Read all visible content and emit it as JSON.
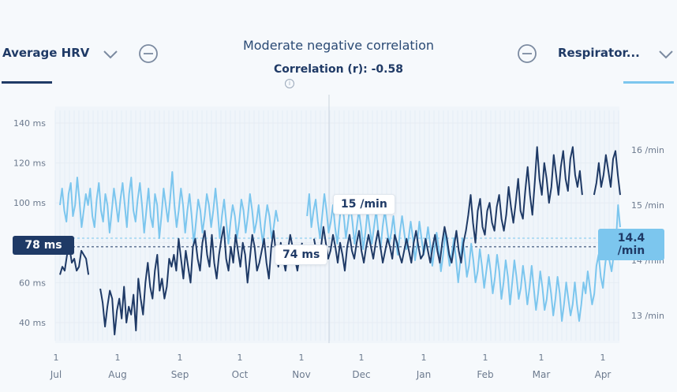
{
  "left_selector": {
    "label": "Average HRV"
  },
  "right_selector": {
    "label": "Respirator..."
  },
  "header": {
    "title": "Moderate negative correlation",
    "correlation_text": "Correlation (r): -0.58"
  },
  "colors": {
    "hrv": "#1f3a66",
    "respiratory": "#7cc6ee",
    "grid": "#e9eef4"
  },
  "icons": {
    "left_chevron": "chevron-down-icon",
    "right_chevron": "chevron-down-icon",
    "left_remove": "minus-circle-icon",
    "right_remove": "minus-circle-icon",
    "info": "info-icon"
  },
  "badges": {
    "hrv_avg": "78 ms",
    "rr_avg": "14.4 /min"
  },
  "tooltip": {
    "rr_value": "15 /min",
    "hrv_value": "74 ms"
  },
  "chart_data": {
    "type": "line",
    "title": "Moderate negative correlation",
    "x_ticks": [
      {
        "day": "1",
        "month": "Jul"
      },
      {
        "day": "1",
        "month": "Aug"
      },
      {
        "day": "1",
        "month": "Sep"
      },
      {
        "day": "1",
        "month": "Oct"
      },
      {
        "day": "1",
        "month": "Nov"
      },
      {
        "day": "1",
        "month": "Dec"
      },
      {
        "day": "1",
        "month": "Jan"
      },
      {
        "day": "1",
        "month": "Feb"
      },
      {
        "day": "1",
        "month": "Mar"
      },
      {
        "day": "1",
        "month": "Apr"
      }
    ],
    "y_left": {
      "ticks": [
        "140 ms",
        "120 ms",
        "100 ms",
        "80 ms",
        "60 ms",
        "40 ms"
      ],
      "values": [
        140,
        120,
        100,
        80,
        60,
        40
      ],
      "range": [
        30,
        150
      ]
    },
    "y_right": {
      "ticks": [
        "16 /min",
        "15 /min",
        "14 /min",
        "13 /min"
      ],
      "values": [
        16,
        15,
        14,
        13
      ],
      "range": [
        12.5,
        16.5
      ]
    },
    "hrv_average": 78,
    "respiratory_average": 14.4,
    "series": [
      {
        "name": "Average HRV",
        "axis": "left",
        "color": "#1f3a66",
        "segments": [
          [
            64,
            68,
            66,
            74,
            78,
            70,
            72,
            66,
            68,
            76,
            74,
            72,
            64
          ],
          [
            57,
            50,
            38,
            48,
            56,
            52,
            34,
            46,
            52,
            42,
            58,
            40,
            48,
            44,
            54,
            36,
            62,
            52,
            44,
            60,
            70,
            58,
            52,
            66,
            74,
            56,
            62,
            52,
            58,
            72,
            68,
            74,
            66,
            82,
            72,
            62,
            76,
            68,
            60,
            78,
            82,
            72,
            66,
            80,
            86,
            74,
            68,
            84,
            70,
            62,
            74,
            82,
            88,
            72,
            66,
            78,
            70,
            84,
            76,
            68,
            80,
            74,
            60,
            72,
            84,
            78,
            66,
            70,
            76,
            82,
            70,
            62,
            78,
            86,
            74,
            68,
            80,
            72,
            66,
            76,
            84,
            78,
            72,
            66,
            74,
            80
          ],
          [
            82,
            76,
            70,
            78,
            88,
            80,
            72,
            76,
            84,
            78,
            70,
            80,
            74,
            66,
            78,
            84,
            76,
            72,
            80,
            86,
            76,
            70,
            78,
            84,
            78,
            72,
            80,
            86,
            78,
            70,
            76,
            82,
            78,
            72,
            84,
            80,
            74,
            70,
            76,
            82,
            76,
            70,
            80,
            86,
            78,
            72,
            74,
            82,
            76,
            70,
            78,
            84,
            76,
            70,
            80,
            88,
            82,
            74,
            70,
            78,
            86,
            76,
            70,
            80,
            86,
            94,
            104,
            90,
            80,
            96,
            102,
            88,
            84,
            96,
            100,
            90,
            86,
            98,
            104,
            92,
            86,
            94,
            108,
            98,
            90,
            100,
            112,
            96,
            92,
            106,
            118,
            104,
            94,
            110,
            128,
            112,
            104,
            120,
            112,
            100,
            108,
            124,
            114,
            104,
            118,
            126,
            112,
            106,
            122,
            128,
            114,
            108,
            116,
            104
          ],
          [
            104,
            110,
            120,
            108,
            114,
            124,
            116,
            108,
            122,
            126,
            114,
            104
          ]
        ]
      },
      {
        "name": "Respiratory rate",
        "axis": "right",
        "color": "#7cc6ee",
        "segments": [
          [
            15.0,
            15.3,
            14.9,
            14.7,
            15.2,
            15.4,
            14.8,
            15.0,
            15.5,
            15.1,
            14.6,
            14.9,
            15.2,
            15.0,
            15.3,
            14.8,
            14.6,
            15.1,
            15.4,
            14.9,
            14.7,
            15.2,
            15.0,
            14.5,
            14.9,
            15.3,
            15.0,
            14.7,
            15.1,
            15.4,
            15.0,
            14.6,
            15.2,
            15.5,
            14.9,
            14.7,
            15.1,
            15.4,
            15.0,
            14.5,
            14.9,
            15.3,
            14.8,
            14.6,
            15.2,
            15.0,
            14.4,
            14.8,
            15.3,
            15.0,
            14.7,
            15.1,
            15.6,
            15.0,
            14.6,
            14.9,
            15.3,
            15.0,
            14.5,
            14.9,
            15.2,
            14.8,
            14.3,
            14.7,
            15.1,
            14.9,
            14.5,
            14.8,
            15.2,
            15.0,
            14.6,
            14.9,
            15.3,
            14.9,
            14.4,
            14.8,
            15.1,
            14.7,
            14.3,
            14.7,
            15.0,
            14.8,
            14.4,
            14.7,
            15.1,
            14.9,
            14.5,
            14.8,
            15.2,
            14.9,
            14.5,
            14.7,
            15.0,
            14.6,
            14.3,
            14.7,
            15.0,
            14.8,
            14.4,
            14.6,
            14.9,
            14.7
          ],
          [
            14.8,
            15.2,
            14.6,
            14.9,
            15.1,
            14.7,
            14.4,
            14.8,
            15.2,
            14.9,
            14.5,
            14.7,
            15.0,
            14.6,
            14.3,
            14.7,
            15.1,
            14.8,
            14.4,
            14.7,
            15.0,
            14.7,
            14.3,
            14.6,
            14.9,
            14.6,
            14.2,
            14.5,
            14.9,
            14.6,
            14.3,
            14.6,
            14.9,
            14.5,
            14.2,
            14.6,
            14.9,
            14.6,
            14.3,
            14.5,
            14.8,
            14.4,
            14.1,
            14.5,
            14.8,
            14.5,
            14.2,
            14.4,
            14.7,
            14.4,
            14.0,
            14.3,
            14.7,
            14.4,
            14.1,
            14.3,
            14.6,
            14.3,
            13.9,
            14.2,
            14.5,
            14.2,
            13.8,
            14.1,
            14.5,
            14.2,
            13.9,
            14.1,
            14.4,
            14.0,
            13.6,
            14.0,
            14.4,
            14.1,
            13.7,
            13.9,
            14.3,
            14.0,
            13.6,
            13.8,
            14.2,
            13.9,
            13.5,
            13.8,
            14.1,
            13.8,
            13.4,
            13.7,
            14.1,
            13.8,
            13.3,
            13.6,
            14.0,
            13.7,
            13.2,
            13.6,
            14.0,
            13.7,
            13.3,
            13.5,
            13.9,
            13.6,
            13.2,
            13.5,
            13.9,
            13.5,
            13.1,
            13.4,
            13.8,
            13.5,
            13.1,
            13.3,
            13.7,
            13.4,
            13.0,
            13.3,
            13.7,
            13.4,
            12.9,
            13.2,
            13.6,
            13.3,
            13.0,
            13.2,
            13.6,
            13.2,
            12.9,
            13.2,
            13.6,
            13.4,
            13.8,
            13.5,
            13.2,
            13.4,
            13.9,
            14.1,
            13.7,
            13.5,
            13.9,
            14.2,
            14.0,
            13.8,
            14.1,
            14.3,
            15.0,
            14.6
          ]
        ]
      }
    ]
  }
}
